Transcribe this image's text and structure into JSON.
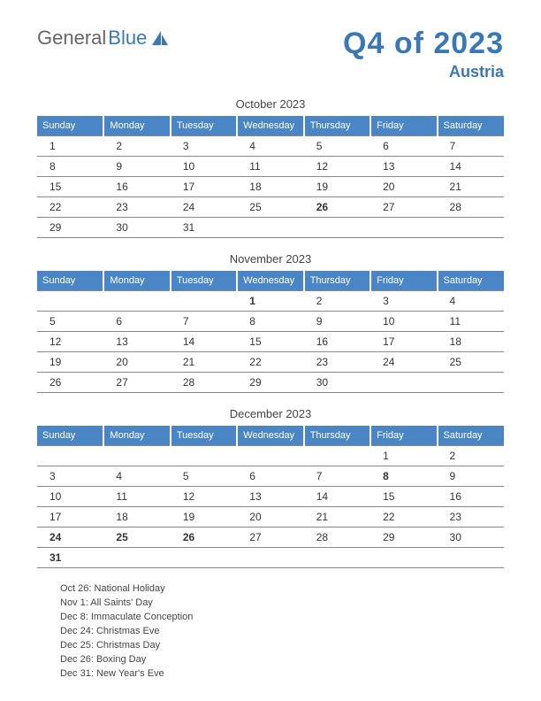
{
  "logo": {
    "part1": "General",
    "part2": "Blue"
  },
  "title": "Q4 of 2023",
  "subtitle": "Austria",
  "colors": {
    "brand": "#3a78b5",
    "header_bg": "#4a86c5",
    "holiday": "#c9302c",
    "rule": "#888888"
  },
  "weekdays": [
    "Sunday",
    "Monday",
    "Tuesday",
    "Wednesday",
    "Thursday",
    "Friday",
    "Saturday"
  ],
  "months": [
    {
      "title": "October 2023",
      "weeks": [
        [
          {
            "d": "1"
          },
          {
            "d": "2"
          },
          {
            "d": "3"
          },
          {
            "d": "4"
          },
          {
            "d": "5"
          },
          {
            "d": "6"
          },
          {
            "d": "7"
          }
        ],
        [
          {
            "d": "8"
          },
          {
            "d": "9"
          },
          {
            "d": "10"
          },
          {
            "d": "11"
          },
          {
            "d": "12"
          },
          {
            "d": "13"
          },
          {
            "d": "14"
          }
        ],
        [
          {
            "d": "15"
          },
          {
            "d": "16"
          },
          {
            "d": "17"
          },
          {
            "d": "18"
          },
          {
            "d": "19"
          },
          {
            "d": "20"
          },
          {
            "d": "21"
          }
        ],
        [
          {
            "d": "22"
          },
          {
            "d": "23"
          },
          {
            "d": "24"
          },
          {
            "d": "25"
          },
          {
            "d": "26",
            "h": true
          },
          {
            "d": "27"
          },
          {
            "d": "28"
          }
        ],
        [
          {
            "d": "29"
          },
          {
            "d": "30"
          },
          {
            "d": "31"
          },
          {
            "d": ""
          },
          {
            "d": ""
          },
          {
            "d": ""
          },
          {
            "d": ""
          }
        ]
      ]
    },
    {
      "title": "November 2023",
      "weeks": [
        [
          {
            "d": ""
          },
          {
            "d": ""
          },
          {
            "d": ""
          },
          {
            "d": "1",
            "h": true
          },
          {
            "d": "2"
          },
          {
            "d": "3"
          },
          {
            "d": "4"
          }
        ],
        [
          {
            "d": "5"
          },
          {
            "d": "6"
          },
          {
            "d": "7"
          },
          {
            "d": "8"
          },
          {
            "d": "9"
          },
          {
            "d": "10"
          },
          {
            "d": "11"
          }
        ],
        [
          {
            "d": "12"
          },
          {
            "d": "13"
          },
          {
            "d": "14"
          },
          {
            "d": "15"
          },
          {
            "d": "16"
          },
          {
            "d": "17"
          },
          {
            "d": "18"
          }
        ],
        [
          {
            "d": "19"
          },
          {
            "d": "20"
          },
          {
            "d": "21"
          },
          {
            "d": "22"
          },
          {
            "d": "23"
          },
          {
            "d": "24"
          },
          {
            "d": "25"
          }
        ],
        [
          {
            "d": "26"
          },
          {
            "d": "27"
          },
          {
            "d": "28"
          },
          {
            "d": "29"
          },
          {
            "d": "30"
          },
          {
            "d": ""
          },
          {
            "d": ""
          }
        ]
      ]
    },
    {
      "title": "December 2023",
      "weeks": [
        [
          {
            "d": ""
          },
          {
            "d": ""
          },
          {
            "d": ""
          },
          {
            "d": ""
          },
          {
            "d": ""
          },
          {
            "d": "1"
          },
          {
            "d": "2"
          }
        ],
        [
          {
            "d": "3"
          },
          {
            "d": "4"
          },
          {
            "d": "5"
          },
          {
            "d": "6"
          },
          {
            "d": "7"
          },
          {
            "d": "8",
            "h": true
          },
          {
            "d": "9"
          }
        ],
        [
          {
            "d": "10"
          },
          {
            "d": "11"
          },
          {
            "d": "12"
          },
          {
            "d": "13"
          },
          {
            "d": "14"
          },
          {
            "d": "15"
          },
          {
            "d": "16"
          }
        ],
        [
          {
            "d": "17"
          },
          {
            "d": "18"
          },
          {
            "d": "19"
          },
          {
            "d": "20"
          },
          {
            "d": "21"
          },
          {
            "d": "22"
          },
          {
            "d": "23"
          }
        ],
        [
          {
            "d": "24",
            "h": true
          },
          {
            "d": "25",
            "h": true
          },
          {
            "d": "26",
            "h": true
          },
          {
            "d": "27"
          },
          {
            "d": "28"
          },
          {
            "d": "29"
          },
          {
            "d": "30"
          }
        ],
        [
          {
            "d": "31",
            "h": true
          },
          {
            "d": ""
          },
          {
            "d": ""
          },
          {
            "d": ""
          },
          {
            "d": ""
          },
          {
            "d": ""
          },
          {
            "d": ""
          }
        ]
      ]
    }
  ],
  "holidays": [
    "Oct 26: National Holiday",
    "Nov 1: All Saints' Day",
    "Dec 8: Immaculate Conception",
    "Dec 24: Christmas Eve",
    "Dec 25: Christmas Day",
    "Dec 26: Boxing Day",
    "Dec 31: New Year's Eve"
  ]
}
